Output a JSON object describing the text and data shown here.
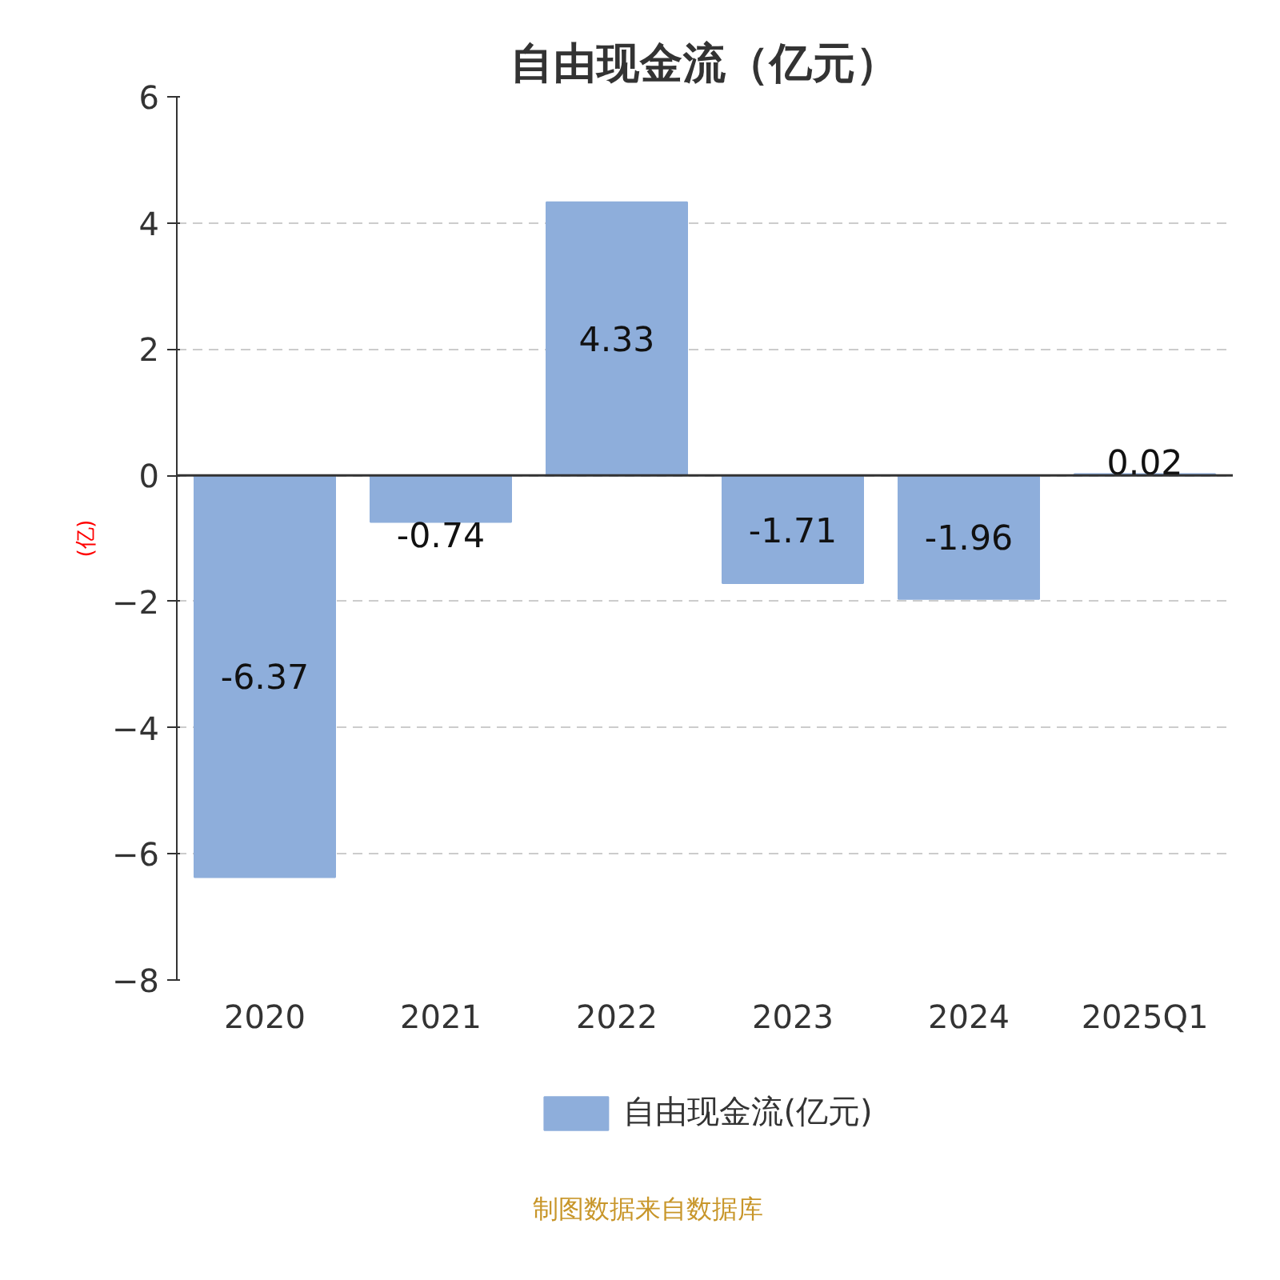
{
  "chart_data": {
    "type": "bar",
    "title": "自由现金流（亿元）",
    "ylabel": "(亿)",
    "categories": [
      "2020",
      "2021",
      "2022",
      "2023",
      "2024",
      "2025Q1"
    ],
    "series": [
      {
        "name": "自由现金流(亿元)",
        "color": "#8eaedb",
        "values": [
          -6.37,
          -0.74,
          4.33,
          -1.71,
          -1.96,
          0.02
        ]
      }
    ],
    "ylim": [
      -8,
      6
    ],
    "yticks": [
      -8,
      -6,
      -4,
      -2,
      0,
      2,
      4,
      6
    ],
    "grid": "y",
    "legend": "bottom",
    "data_labels": true,
    "annotations": [
      "制图数据来自数据库"
    ]
  }
}
